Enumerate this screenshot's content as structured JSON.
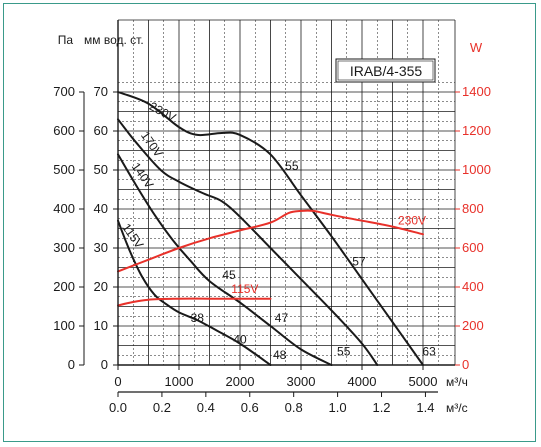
{
  "chart_data": {
    "type": "line",
    "model_label": "IRAB/4-355",
    "left_axis_units": {
      "pa": "Па",
      "mm": "мм вод. ст."
    },
    "right_axis_unit": "W",
    "x_axis_units": {
      "flow_m3h": "м³/ч",
      "flow_m3s": "м³/с"
    },
    "x_ticks_m3h": [
      0,
      1000,
      2000,
      3000,
      4000,
      5000
    ],
    "x_ticks_m3s": [
      "0.0",
      "0.2",
      "0.4",
      "0.6",
      "0.8",
      "1.0",
      "1.2",
      "1.4"
    ],
    "y_ticks_pa": [
      0,
      100,
      200,
      300,
      400,
      500,
      600,
      700
    ],
    "y_ticks_mm": [
      0,
      10,
      20,
      30,
      40,
      50,
      60,
      70
    ],
    "y_ticks_w": [
      0,
      200,
      400,
      600,
      800,
      1000,
      1200,
      1400
    ],
    "xlim_m3h": [
      0,
      5000
    ],
    "ylim_pa": [
      0,
      720
    ],
    "ylim_w": [
      0,
      1440
    ],
    "grid": true,
    "series": [
      {
        "name": "230V",
        "kind": "pressure",
        "unit": "Pa",
        "x": [
          0,
          500,
          1000,
          1300,
          1700,
          2000,
          2500,
          3000,
          3500,
          4000,
          4500,
          5000
        ],
        "y": [
          700,
          670,
          610,
          590,
          595,
          590,
          540,
          435,
          330,
          220,
          110,
          0
        ]
      },
      {
        "name": "170V",
        "kind": "pressure",
        "unit": "Pa",
        "x": [
          0,
          300,
          700,
          1000,
          1400,
          1700,
          2000,
          2500,
          3000,
          3500,
          4000,
          4250
        ],
        "y": [
          630,
          570,
          500,
          470,
          440,
          420,
          380,
          300,
          220,
          140,
          55,
          0
        ]
      },
      {
        "name": "140V",
        "kind": "pressure",
        "unit": "Pa",
        "x": [
          0,
          300,
          600,
          900,
          1200,
          1500,
          2000,
          2500,
          3000,
          3500
        ],
        "y": [
          540,
          460,
          385,
          320,
          265,
          215,
          160,
          100,
          40,
          0
        ]
      },
      {
        "name": "115V",
        "kind": "pressure",
        "unit": "Pa",
        "x": [
          0,
          200,
          400,
          600,
          800,
          1000,
          1300,
          1600,
          2000,
          2500
        ],
        "y": [
          370,
          290,
          225,
          180,
          155,
          135,
          115,
          90,
          55,
          0
        ]
      },
      {
        "name": "230V",
        "kind": "power",
        "unit": "W",
        "x": [
          0,
          500,
          1000,
          1500,
          2000,
          2500,
          2800,
          3000,
          3200,
          3500,
          4000,
          4500,
          5000
        ],
        "y": [
          480,
          540,
          600,
          650,
          690,
          730,
          780,
          790,
          790,
          770,
          740,
          710,
          670
        ]
      },
      {
        "name": "115V",
        "kind": "power",
        "unit": "W",
        "x": [
          0,
          200,
          500,
          1000,
          1500,
          2000,
          2500
        ],
        "y": [
          305,
          320,
          335,
          340,
          340,
          340,
          340
        ]
      }
    ],
    "annotations": [
      {
        "text": "230V",
        "x": 700,
        "y": 640,
        "color": "#1a1a1a"
      },
      {
        "text": "170V",
        "x": 500,
        "y": 560,
        "color": "#1a1a1a"
      },
      {
        "text": "140V",
        "x": 350,
        "y": 480,
        "color": "#1a1a1a"
      },
      {
        "text": "115V",
        "x": 190,
        "y": 325,
        "color": "#1a1a1a"
      },
      {
        "text": "55",
        "x": 2850,
        "y": 500,
        "color": "#1a1a1a"
      },
      {
        "text": "57",
        "x": 3950,
        "y": 255,
        "color": "#1a1a1a"
      },
      {
        "text": "45",
        "x": 1820,
        "y": 220,
        "color": "#1a1a1a"
      },
      {
        "text": "47",
        "x": 2680,
        "y": 110,
        "color": "#1a1a1a"
      },
      {
        "text": "38",
        "x": 1300,
        "y": 110,
        "color": "#1a1a1a"
      },
      {
        "text": "40",
        "x": 2000,
        "y": 55,
        "color": "#1a1a1a"
      },
      {
        "text": "48",
        "x": 2650,
        "y": 15,
        "color": "#1a1a1a"
      },
      {
        "text": "55",
        "x": 3700,
        "y": 25,
        "color": "#1a1a1a"
      },
      {
        "text": "63",
        "x": 5100,
        "y": 25,
        "color": "#1a1a1a"
      },
      {
        "text": "230V",
        "x": 4820,
        "y": 360,
        "color": "#e8312a"
      },
      {
        "text": "115V",
        "x": 2080,
        "y": 185,
        "color": "#e8312a"
      }
    ],
    "colors": {
      "pressure_curve": "#1a1a1a",
      "power_curve": "#e8312a",
      "right_axis": "#e8312a",
      "grid": "#1a1a1a",
      "frame": "#3a9a8a"
    }
  }
}
